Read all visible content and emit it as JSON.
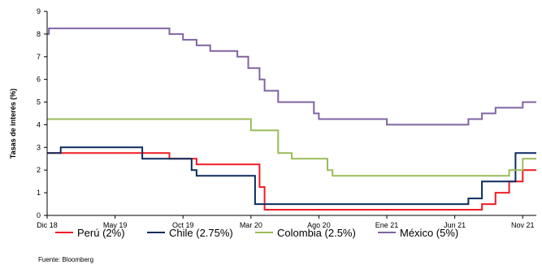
{
  "chart_data": {
    "type": "line",
    "step": true,
    "ylabel": "Tasas de interés (%)",
    "ylim": [
      0,
      9
    ],
    "yticks": [
      0,
      1,
      2,
      3,
      4,
      5,
      6,
      7,
      8,
      9
    ],
    "xlim": [
      "2018-12",
      "2021-12"
    ],
    "xticks": [
      {
        "label": "Dic 18",
        "x": "2018-12"
      },
      {
        "label": "May 19",
        "x": "2019-05"
      },
      {
        "label": "Oct 19",
        "x": "2019-10"
      },
      {
        "label": "Mar 20",
        "x": "2020-03"
      },
      {
        "label": "Ago 20",
        "x": "2020-08"
      },
      {
        "label": "Ene 21",
        "x": "2021-01"
      },
      {
        "label": "Jun 21",
        "x": "2021-06"
      },
      {
        "label": "Nov 21",
        "x": "2021-11"
      }
    ],
    "grid": false,
    "legend_position": "bottom",
    "series": [
      {
        "name": "Perú (2%)",
        "color": "#ee1c25",
        "points": [
          [
            "2018-12",
            2.75
          ],
          [
            "2019-08",
            2.75
          ],
          [
            "2019-09",
            2.5
          ],
          [
            "2019-11",
            2.25
          ],
          [
            "2020-03",
            2.25
          ],
          [
            "2020-03-20",
            1.25
          ],
          [
            "2020-04",
            0.25
          ],
          [
            "2021-07",
            0.25
          ],
          [
            "2021-08",
            0.5
          ],
          [
            "2021-09",
            1.0
          ],
          [
            "2021-10",
            1.5
          ],
          [
            "2021-11",
            2.0
          ],
          [
            "2021-12",
            2.0
          ]
        ]
      },
      {
        "name": "Chile (2.75%)",
        "color": "#0b2c5e",
        "points": [
          [
            "2018-12",
            2.75
          ],
          [
            "2019-01",
            3.0
          ],
          [
            "2019-06",
            3.0
          ],
          [
            "2019-07",
            2.5
          ],
          [
            "2019-10",
            2.5
          ],
          [
            "2019-10-20",
            2.0
          ],
          [
            "2019-11",
            1.75
          ],
          [
            "2020-03",
            1.75
          ],
          [
            "2020-03-10",
            0.5
          ],
          [
            "2021-06",
            0.5
          ],
          [
            "2021-07",
            0.75
          ],
          [
            "2021-08",
            1.5
          ],
          [
            "2021-10",
            1.5
          ],
          [
            "2021-10-15",
            2.75
          ],
          [
            "2021-12",
            2.75
          ]
        ]
      },
      {
        "name": "Colombia (2.5%)",
        "color": "#9bbb59",
        "points": [
          [
            "2018-12",
            4.25
          ],
          [
            "2020-03",
            4.25
          ],
          [
            "2020-03",
            3.75
          ],
          [
            "2020-04",
            3.75
          ],
          [
            "2020-05",
            2.75
          ],
          [
            "2020-06",
            2.5
          ],
          [
            "2020-08",
            2.5
          ],
          [
            "2020-08-20",
            2.0
          ],
          [
            "2020-09",
            1.75
          ],
          [
            "2021-09",
            1.75
          ],
          [
            "2021-10",
            2.0
          ],
          [
            "2021-11",
            2.5
          ],
          [
            "2021-12",
            2.5
          ]
        ]
      },
      {
        "name": "México (5%)",
        "color": "#8064a2",
        "points": [
          [
            "2018-12",
            8.0
          ],
          [
            "2018-12-05",
            8.25
          ],
          [
            "2019-08",
            8.25
          ],
          [
            "2019-09",
            8.0
          ],
          [
            "2019-10",
            7.75
          ],
          [
            "2019-11",
            7.5
          ],
          [
            "2019-12",
            7.25
          ],
          [
            "2020-02",
            7.0
          ],
          [
            "2020-02-25",
            6.5
          ],
          [
            "2020-03-20",
            6.0
          ],
          [
            "2020-04",
            5.5
          ],
          [
            "2020-05",
            5.0
          ],
          [
            "2020-07",
            5.0
          ],
          [
            "2020-07-20",
            4.5
          ],
          [
            "2020-08",
            4.25
          ],
          [
            "2020-12",
            4.25
          ],
          [
            "2021-01",
            4.0
          ],
          [
            "2021-06",
            4.0
          ],
          [
            "2021-07",
            4.25
          ],
          [
            "2021-08",
            4.5
          ],
          [
            "2021-09",
            4.75
          ],
          [
            "2021-11",
            5.0
          ],
          [
            "2021-12",
            5.0
          ]
        ]
      }
    ]
  },
  "source": "Fuente: Bloomberg"
}
